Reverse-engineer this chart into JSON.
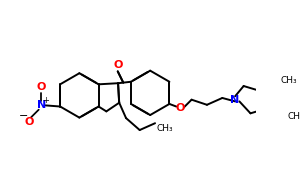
{
  "bg_color": "#ffffff",
  "bond_color": "#000000",
  "oxygen_color": "#ff0000",
  "nitrogen_color": "#0000ff",
  "lw": 1.4,
  "dbo": 0.008,
  "figsize": [
    3.0,
    1.84
  ],
  "dpi": 100,
  "xlim": [
    0,
    300
  ],
  "ylim": [
    0,
    184
  ]
}
